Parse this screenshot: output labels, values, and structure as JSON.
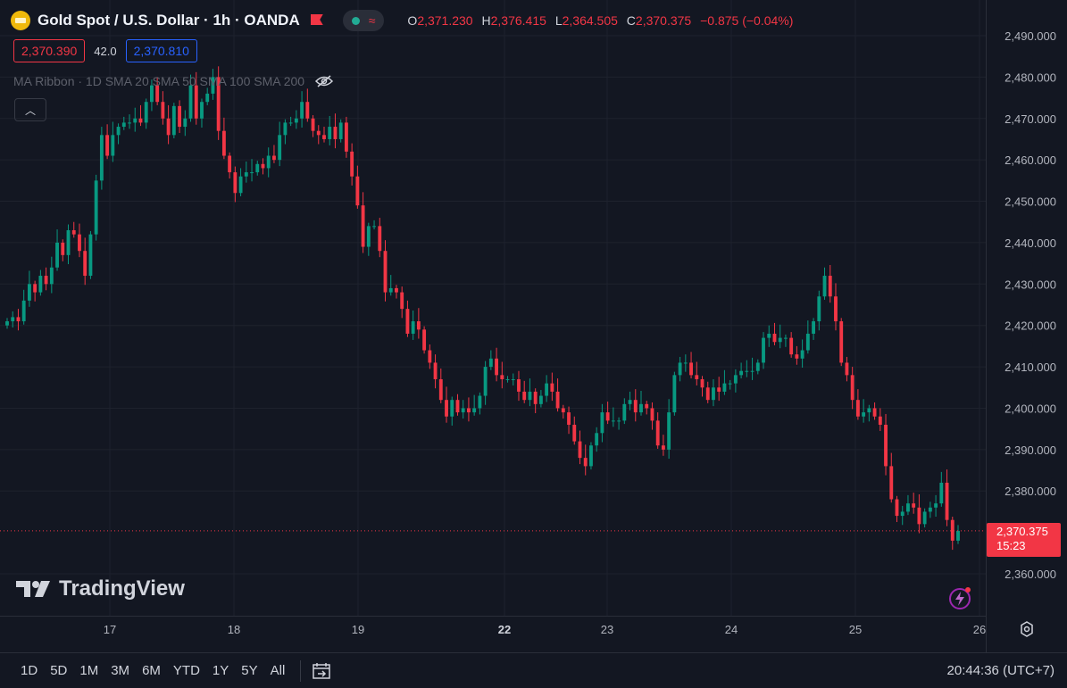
{
  "header": {
    "symbol_title": "Gold Spot / U.S. Dollar · 1h · OANDA",
    "ohlc": [
      {
        "key": "O",
        "value": "2,371.230"
      },
      {
        "key": "H",
        "value": "2,376.415"
      },
      {
        "key": "L",
        "value": "2,364.505"
      },
      {
        "key": "C",
        "value": "2,370.375"
      }
    ],
    "change": "−0.875 (−0.04%)",
    "bid": "2,370.390",
    "spread": "42.0",
    "ask": "2,370.810",
    "indicator": "MA Ribbon · 1D SMA 20 SMA 50 SMA 100 SMA 200",
    "collapse_icon": "chevron-up-icon"
  },
  "branding": {
    "logo_text": "TradingView"
  },
  "last_price": {
    "value": "2,370.375",
    "countdown": "15:23"
  },
  "toolbar": {
    "ranges": [
      "1D",
      "5D",
      "1M",
      "3M",
      "6M",
      "YTD",
      "1Y",
      "5Y",
      "All"
    ],
    "clock": "20:44:36 (UTC+7)"
  },
  "colors": {
    "up": "#089981",
    "down": "#f23645",
    "background": "#131722",
    "grid": "#1e222d",
    "text": "#b2b5be"
  },
  "chart_data": {
    "type": "candlestick",
    "interval": "1h",
    "y_ticks": [
      "2,490.000",
      "2,480.000",
      "2,470.000",
      "2,460.000",
      "2,450.000",
      "2,440.000",
      "2,430.000",
      "2,420.000",
      "2,410.000",
      "2,400.000",
      "2,390.000",
      "2,380.000",
      "2,360.000"
    ],
    "ylim": [
      2355,
      2495
    ],
    "x_ticks": [
      "17",
      "18",
      "19",
      "22",
      "23",
      "24",
      "25",
      "26"
    ],
    "closes": [
      2421,
      2422,
      2421,
      2426,
      2430,
      2428,
      2432,
      2430,
      2434,
      2440,
      2437,
      2443,
      2442,
      2438,
      2432,
      2442,
      2455,
      2466,
      2461,
      2466,
      2468,
      2469,
      2469,
      2470,
      2469,
      2474,
      2478,
      2474,
      2470,
      2466,
      2473,
      2468,
      2470,
      2478,
      2470,
      2474,
      2476,
      2480,
      2467,
      2461,
      2457,
      2452,
      2456,
      2457,
      2457,
      2459,
      2458,
      2461,
      2460,
      2466,
      2469,
      2469,
      2470,
      2474,
      2470,
      2467,
      2466,
      2465,
      2468,
      2465,
      2469,
      2462,
      2456,
      2449,
      2439,
      2444,
      2444,
      2438,
      2428,
      2429,
      2428,
      2424,
      2418,
      2421,
      2419,
      2414,
      2411,
      2407,
      2402,
      2398,
      2402,
      2399,
      2400,
      2399,
      2400,
      2403,
      2410,
      2412,
      2408,
      2407,
      2407,
      2407,
      2404,
      2402,
      2404,
      2401,
      2403,
      2406,
      2404,
      2400,
      2399,
      2396,
      2392,
      2388,
      2386,
      2391,
      2394,
      2399,
      2397,
      2397,
      2397,
      2401,
      2402,
      2399,
      2401,
      2400,
      2397,
      2391,
      2390,
      2399,
      2408,
      2411,
      2411,
      2408,
      2407,
      2405,
      2402,
      2405,
      2404,
      2406,
      2406,
      2408,
      2409,
      2409,
      2409,
      2411,
      2417,
      2418,
      2416,
      2417,
      2417,
      2413,
      2412,
      2414,
      2418,
      2421,
      2427,
      2432,
      2427,
      2421,
      2411,
      2408,
      2402,
      2398,
      2399,
      2400,
      2398,
      2396,
      2386,
      2378,
      2374,
      2375,
      2377,
      2376,
      2372,
      2375,
      2376,
      2377,
      2382,
      2373,
      2368,
      2370.375
    ]
  }
}
